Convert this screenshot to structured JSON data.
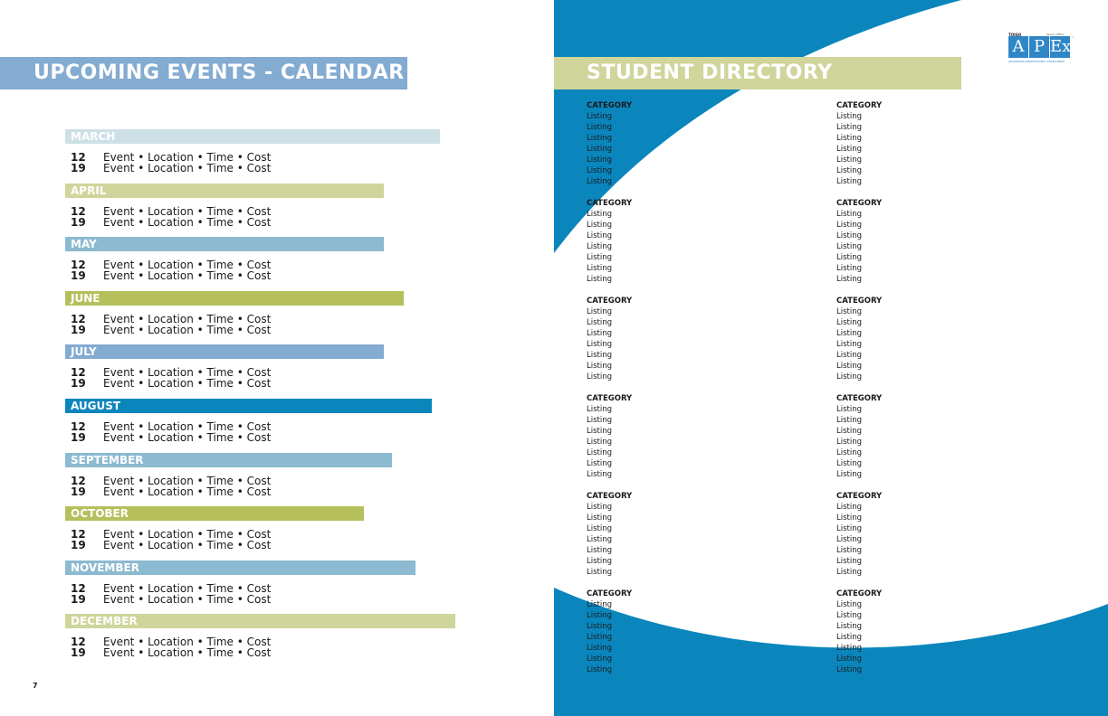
{
  "left_page": {
    "header": "UPCOMING EVENTS - CALENDAR",
    "page_number": "7",
    "months": [
      {
        "name": "MARCH",
        "color": "#cde0e6",
        "width_pct": 94,
        "events": [
          {
            "day": "12",
            "text": "Event • Location • Time • Cost"
          },
          {
            "day": "19",
            "text": "Event • Location • Time • Cost"
          }
        ]
      },
      {
        "name": "APRIL",
        "color": "#cfd59b",
        "width_pct": 80,
        "events": [
          {
            "day": "12",
            "text": "Event • Location • Time • Cost"
          },
          {
            "day": "19",
            "text": "Event • Location • Time • Cost"
          }
        ]
      },
      {
        "name": "MAY",
        "color": "#8cbad0",
        "width_pct": 80,
        "events": [
          {
            "day": "12",
            "text": "Event • Location • Time • Cost"
          },
          {
            "day": "19",
            "text": "Event • Location • Time • Cost"
          }
        ]
      },
      {
        "name": "JUNE",
        "color": "#b5c05c",
        "width_pct": 85,
        "events": [
          {
            "day": "12",
            "text": "Event • Location • Time • Cost"
          },
          {
            "day": "19",
            "text": "Event • Location • Time • Cost"
          }
        ]
      },
      {
        "name": "JULY",
        "color": "#84abd1",
        "width_pct": 80,
        "events": [
          {
            "day": "12",
            "text": "Event • Location • Time • Cost"
          },
          {
            "day": "19",
            "text": "Event • Location • Time • Cost"
          }
        ]
      },
      {
        "name": "AUGUST",
        "color": "#0a86bd",
        "width_pct": 92,
        "events": [
          {
            "day": "12",
            "text": "Event • Location • Time • Cost"
          },
          {
            "day": "19",
            "text": "Event • Location • Time • Cost"
          }
        ]
      },
      {
        "name": "SEPTEMBER",
        "color": "#8cbad0",
        "width_pct": 82,
        "events": [
          {
            "day": "12",
            "text": "Event • Location • Time • Cost"
          },
          {
            "day": "19",
            "text": "Event • Location • Time • Cost"
          }
        ]
      },
      {
        "name": "OCTOBER",
        "color": "#b5c05c",
        "width_pct": 75,
        "events": [
          {
            "day": "12",
            "text": "Event • Location • Time • Cost"
          },
          {
            "day": "19",
            "text": "Event • Location • Time • Cost"
          }
        ]
      },
      {
        "name": "NOVEMBER",
        "color": "#8cbad0",
        "width_pct": 88,
        "events": [
          {
            "day": "12",
            "text": "Event • Location • Time • Cost"
          },
          {
            "day": "19",
            "text": "Event • Location • Time • Cost"
          }
        ]
      },
      {
        "name": "DECEMBER",
        "color": "#cfd59b",
        "width_pct": 98,
        "events": [
          {
            "day": "12",
            "text": "Event • Location • Time • Cost"
          },
          {
            "day": "19",
            "text": "Event • Location • Time • Cost"
          }
        ]
      }
    ]
  },
  "right_page": {
    "header": "STUDENT DIRECTORY",
    "logo": {
      "brand": "TOIGO",
      "tagline_top": "Senior Office Medical",
      "letters": [
        "A",
        "P",
        "Ex"
      ],
      "tagline": "ADVANCING PROFESSIONAL EXCELLENCE",
      "tm": "™"
    },
    "columns": [
      {
        "groups": [
          {
            "category": "CATEGORY",
            "items": [
              "Listing",
              "Listing",
              "Listing",
              "Listing",
              "Listing",
              "Listing",
              "Listing"
            ]
          },
          {
            "category": "CATEGORY",
            "items": [
              "Listing",
              "Listing",
              "Listing",
              "Listing",
              "Listing",
              "Listing",
              "Listing"
            ]
          },
          {
            "category": "CATEGORY",
            "items": [
              "Listing",
              "Listing",
              "Listing",
              "Listing",
              "Listing",
              "Listing",
              "Listing"
            ]
          },
          {
            "category": "CATEGORY",
            "items": [
              "Listing",
              "Listing",
              "Listing",
              "Listing",
              "Listing",
              "Listing",
              "Listing"
            ]
          },
          {
            "category": "CATEGORY",
            "items": [
              "Listing",
              "Listing",
              "Listing",
              "Listing",
              "Listing",
              "Listing",
              "Listing"
            ]
          },
          {
            "category": "CATEGORY",
            "items": [
              "Listing",
              "Listing",
              "Listing",
              "Listing",
              "Listing",
              "Listing",
              "Listing"
            ]
          }
        ]
      },
      {
        "groups": [
          {
            "category": "CATEGORY",
            "items": [
              "Listing",
              "Listing",
              "Listing",
              "Listing",
              "Listing",
              "Listing",
              "Listing"
            ]
          },
          {
            "category": "CATEGORY",
            "items": [
              "Listing",
              "Listing",
              "Listing",
              "Listing",
              "Listing",
              "Listing",
              "Listing"
            ]
          },
          {
            "category": "CATEGORY",
            "items": [
              "Listing",
              "Listing",
              "Listing",
              "Listing",
              "Listing",
              "Listing",
              "Listing"
            ]
          },
          {
            "category": "CATEGORY",
            "items": [
              "Listing",
              "Listing",
              "Listing",
              "Listing",
              "Listing",
              "Listing",
              "Listing"
            ]
          },
          {
            "category": "CATEGORY",
            "items": [
              "Listing",
              "Listing",
              "Listing",
              "Listing",
              "Listing",
              "Listing",
              "Listing"
            ]
          },
          {
            "category": "CATEGORY",
            "items": [
              "Listing",
              "Listing",
              "Listing",
              "Listing",
              "Listing",
              "Listing",
              "Listing"
            ]
          }
        ]
      }
    ],
    "colors": {
      "swoosh_blue": "#0a86bd",
      "header_green": "#cfd59b"
    }
  }
}
